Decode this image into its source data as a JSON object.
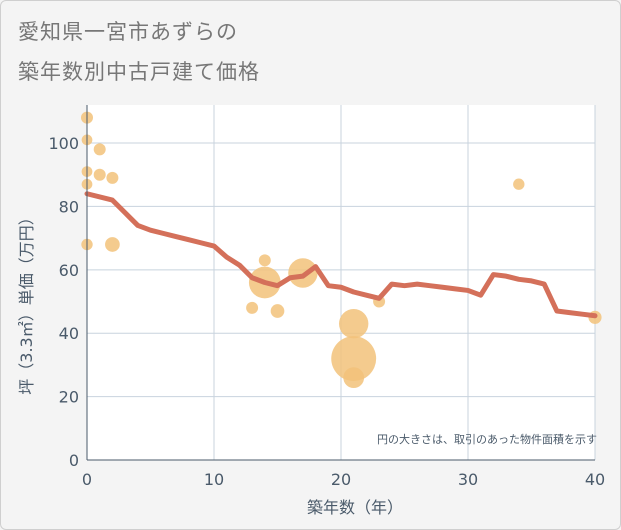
{
  "header": {
    "title_line1": "愛知県一宮市あずらの",
    "title_line2": "築年数別中古戸建て価格"
  },
  "chart_data": {
    "type": "scatter",
    "xlabel": "築年数（年）",
    "ylabel": "坪（3.3㎡）単価（万円）",
    "note": "円の大きさは、取引のあった物件面積を示す",
    "xlim": [
      0,
      40
    ],
    "ylim": [
      0,
      112
    ],
    "xticks": [
      0,
      10,
      20,
      30,
      40
    ],
    "yticks": [
      0,
      20,
      40,
      60,
      80,
      100
    ],
    "grid": true,
    "colors": {
      "bubble": "#f2c27a",
      "line": "#d4705a",
      "grid": "#c8d3de"
    },
    "series": [
      {
        "type": "bubble",
        "points": [
          {
            "x": 0,
            "y": 108,
            "size": 1
          },
          {
            "x": 0,
            "y": 101,
            "size": 0.8
          },
          {
            "x": 0,
            "y": 91,
            "size": 0.8
          },
          {
            "x": 0,
            "y": 87,
            "size": 0.8
          },
          {
            "x": 0,
            "y": 68,
            "size": 0.9
          },
          {
            "x": 1,
            "y": 98,
            "size": 1
          },
          {
            "x": 1,
            "y": 90,
            "size": 1
          },
          {
            "x": 2,
            "y": 89,
            "size": 1
          },
          {
            "x": 2,
            "y": 68,
            "size": 1.5
          },
          {
            "x": 13,
            "y": 48,
            "size": 1
          },
          {
            "x": 14,
            "y": 63,
            "size": 1
          },
          {
            "x": 14,
            "y": 56,
            "size": 7
          },
          {
            "x": 15,
            "y": 47,
            "size": 1.3
          },
          {
            "x": 17,
            "y": 59,
            "size": 6
          },
          {
            "x": 21,
            "y": 43,
            "size": 6
          },
          {
            "x": 21,
            "y": 32,
            "size": 14
          },
          {
            "x": 21,
            "y": 26,
            "size": 3
          },
          {
            "x": 23,
            "y": 50,
            "size": 1
          },
          {
            "x": 34,
            "y": 87,
            "size": 0.9
          },
          {
            "x": 40,
            "y": 45,
            "size": 1.2
          }
        ]
      },
      {
        "type": "line",
        "x": [
          0,
          2,
          3,
          4,
          5,
          6,
          7,
          8,
          9,
          10,
          11,
          12,
          13,
          14,
          15,
          16,
          17,
          18,
          19,
          20,
          21,
          22,
          23,
          24,
          25,
          26,
          27,
          28,
          29,
          30,
          31,
          32,
          33,
          34,
          35,
          36,
          37,
          38,
          39,
          40
        ],
        "y": [
          84,
          82,
          78,
          74,
          72.5,
          71.5,
          70.5,
          69.5,
          68.5,
          67.5,
          64,
          61.5,
          57.5,
          56,
          55,
          57.5,
          58,
          61,
          55,
          54.5,
          53,
          52,
          51,
          55.5,
          55,
          55.5,
          55,
          54.5,
          54,
          53.5,
          52,
          58.5,
          58,
          57,
          56.5,
          55.5,
          47,
          46.5,
          46,
          45.5
        ]
      }
    ]
  }
}
